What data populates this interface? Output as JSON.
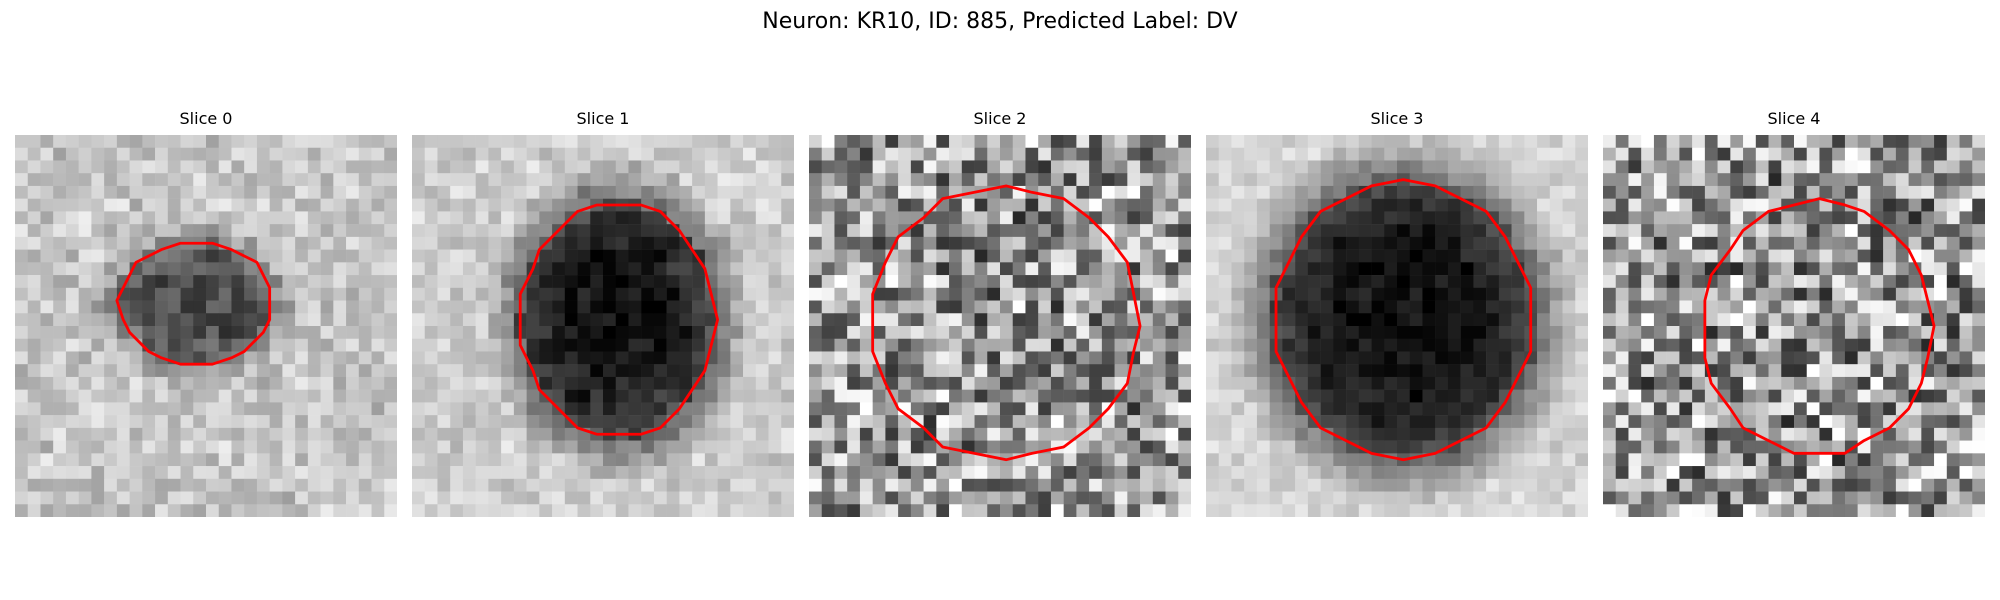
{
  "figure": {
    "title": "Neuron: KR10, ID: 885, Predicted Label: DV",
    "contour_color": "#ff0000"
  },
  "slices": [
    {
      "title": "Slice 0",
      "background": "light",
      "blob_strength": 0.55,
      "blob_radius": 0.14,
      "noise": 0.18
    },
    {
      "title": "Slice 1",
      "background": "light",
      "blob_strength": 0.85,
      "blob_radius": 0.24,
      "noise": 0.14
    },
    {
      "title": "Slice 2",
      "background": "noisy",
      "blob_strength": 0.05,
      "blob_radius": 0.3,
      "noise": 0.42
    },
    {
      "title": "Slice 3",
      "background": "light",
      "blob_strength": 0.9,
      "blob_radius": 0.32,
      "noise": 0.1
    },
    {
      "title": "Slice 4",
      "background": "noisy",
      "blob_strength": 0.05,
      "blob_radius": 0.28,
      "noise": 0.45
    }
  ]
}
